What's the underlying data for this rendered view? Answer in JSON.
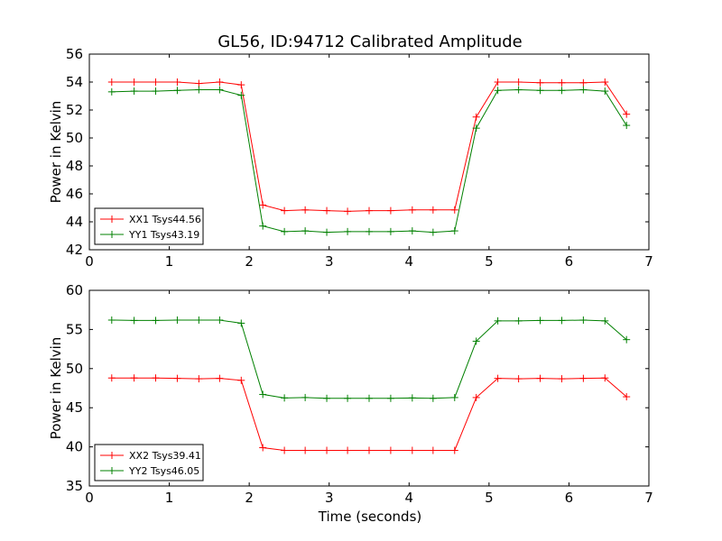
{
  "title": "GL56, ID:94712 Calibrated Amplitude",
  "xlabel": "Time (seconds)",
  "chart_data": [
    {
      "type": "line",
      "ylabel": "Power in Kelvin",
      "xlim": [
        0,
        7
      ],
      "ylim": [
        42,
        56
      ],
      "xticks": [
        0,
        1,
        2,
        3,
        4,
        5,
        6,
        7
      ],
      "yticks": [
        42,
        44,
        46,
        48,
        50,
        52,
        54,
        56
      ],
      "grid": false,
      "legend_position": "lower-left",
      "x": [
        0.28,
        0.56,
        0.83,
        1.1,
        1.37,
        1.63,
        1.9,
        2.17,
        2.44,
        2.7,
        2.97,
        3.23,
        3.5,
        3.77,
        4.04,
        4.3,
        4.57,
        4.84,
        5.11,
        5.37,
        5.64,
        5.91,
        6.18,
        6.45,
        6.72
      ],
      "series": [
        {
          "name": "XX1 Tsys44.56",
          "color": "#ff0000",
          "values": [
            54.0,
            54.0,
            54.0,
            54.0,
            53.9,
            54.0,
            53.8,
            45.2,
            44.8,
            44.85,
            44.8,
            44.75,
            44.8,
            44.8,
            44.85,
            44.85,
            44.85,
            51.5,
            54.0,
            54.0,
            53.95,
            53.95,
            53.95,
            54.0,
            51.7
          ]
        },
        {
          "name": "YY1 Tsys43.19",
          "color": "#008000",
          "values": [
            53.3,
            53.35,
            53.35,
            53.4,
            53.45,
            53.45,
            53.05,
            43.7,
            43.3,
            43.35,
            43.25,
            43.3,
            43.3,
            43.3,
            43.35,
            43.25,
            43.35,
            50.7,
            53.4,
            53.45,
            53.4,
            53.4,
            53.45,
            53.35,
            50.9
          ]
        }
      ]
    },
    {
      "type": "line",
      "ylabel": "Power in Kelvin",
      "xlim": [
        0,
        7
      ],
      "ylim": [
        35,
        60
      ],
      "xticks": [
        0,
        1,
        2,
        3,
        4,
        5,
        6,
        7
      ],
      "yticks": [
        35,
        40,
        45,
        50,
        55,
        60
      ],
      "grid": false,
      "legend_position": "lower-left",
      "x": [
        0.28,
        0.56,
        0.83,
        1.1,
        1.37,
        1.63,
        1.9,
        2.17,
        2.44,
        2.7,
        2.97,
        3.23,
        3.5,
        3.77,
        4.04,
        4.3,
        4.57,
        4.84,
        5.11,
        5.37,
        5.64,
        5.91,
        6.18,
        6.45,
        6.72
      ],
      "series": [
        {
          "name": "XX2 Tsys39.41",
          "color": "#ff0000",
          "values": [
            48.8,
            48.8,
            48.8,
            48.75,
            48.7,
            48.75,
            48.5,
            39.9,
            39.55,
            39.55,
            39.55,
            39.55,
            39.55,
            39.55,
            39.55,
            39.55,
            39.55,
            46.3,
            48.75,
            48.7,
            48.75,
            48.7,
            48.75,
            48.8,
            46.4
          ]
        },
        {
          "name": "YY2 Tsys46.05",
          "color": "#008000",
          "values": [
            56.2,
            56.15,
            56.15,
            56.2,
            56.2,
            56.2,
            55.8,
            46.7,
            46.25,
            46.3,
            46.2,
            46.2,
            46.2,
            46.2,
            46.25,
            46.2,
            46.3,
            53.5,
            56.1,
            56.1,
            56.15,
            56.15,
            56.2,
            56.1,
            53.7
          ]
        }
      ]
    }
  ]
}
